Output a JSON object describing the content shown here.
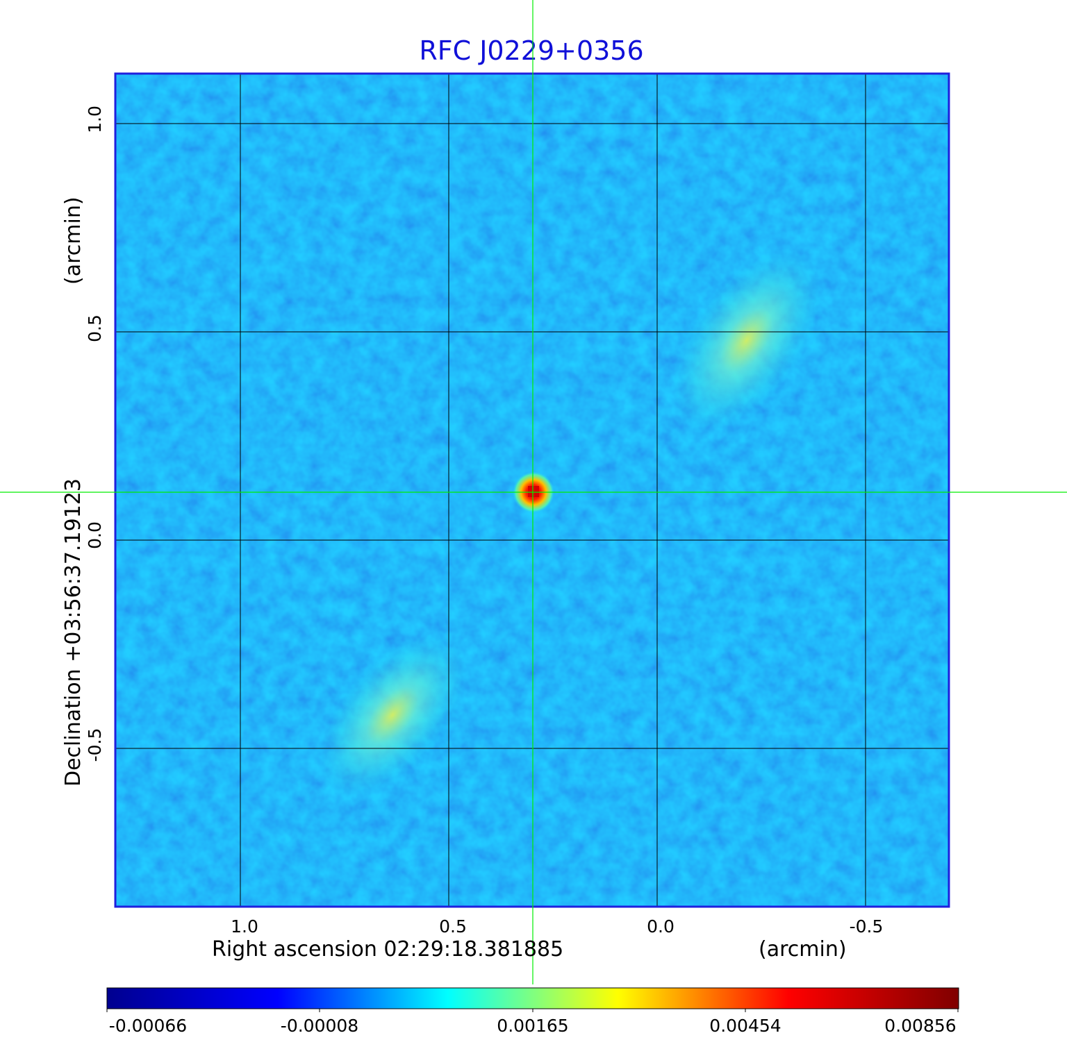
{
  "title": "RFC J0229+0356",
  "x_axis": {
    "label_main": "Right ascension  02:29:18.381885",
    "label_unit": "(arcmin)",
    "ticks": [
      "1.0",
      "0.5",
      "0.0",
      "-0.5"
    ],
    "tick_values": [
      1.0,
      0.5,
      0.0,
      -0.5
    ],
    "range": [
      1.3,
      -0.7
    ]
  },
  "y_axis": {
    "label_main": "Declination  +03:56:37.19123",
    "label_unit": "(arcmin)",
    "ticks": [
      "1.0",
      "0.5",
      "0.0",
      "-0.5"
    ],
    "tick_values": [
      1.0,
      0.5,
      0.0,
      -0.5
    ],
    "range": [
      -0.88,
      1.12
    ]
  },
  "colorbar": {
    "ticks": [
      "-0.00066",
      "-0.00008",
      "0.00165",
      "0.00454",
      "0.00856"
    ],
    "colormap": "jet",
    "colors": [
      "#00008f",
      "#0000ff",
      "#00ffff",
      "#ffff00",
      "#ff0000",
      "#800000"
    ]
  },
  "image": {
    "background_color": "#1e90ff",
    "frame_color": "#1f1fdd",
    "grid": true,
    "grid_color": "#000000",
    "crosshair_color": "#00ee00",
    "peak_color": "#d40000"
  }
}
